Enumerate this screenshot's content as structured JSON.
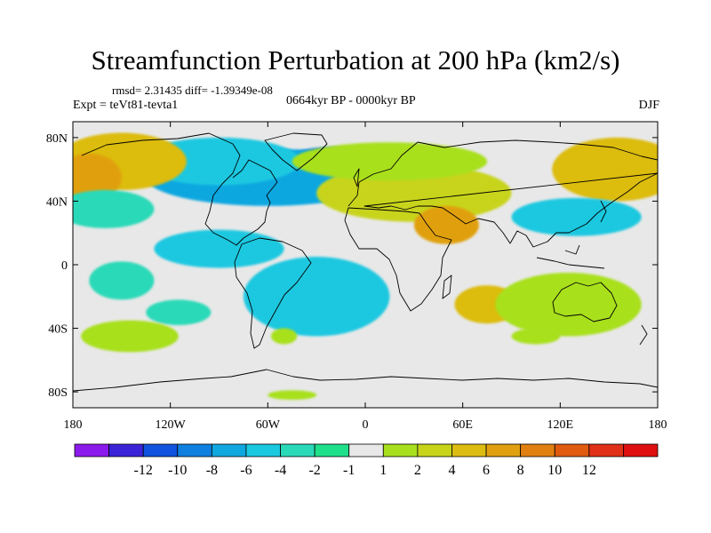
{
  "header": {
    "title": "Streamfunction Perturbation at 200 hPa (km2/s)",
    "stats": "rmsd= 2.31435 diff= -1.39349e-08",
    "experiment": "Expt = teVt81-tevta1",
    "period": "0664kyr BP - 0000kyr BP",
    "season": "DJF"
  },
  "axes": {
    "lat_ticks": [
      {
        "value": 80,
        "label": "80N"
      },
      {
        "value": 40,
        "label": "40N"
      },
      {
        "value": 0,
        "label": "0"
      },
      {
        "value": -40,
        "label": "40S"
      },
      {
        "value": -80,
        "label": "80S"
      }
    ],
    "lon_ticks": [
      {
        "value": -180,
        "label": "180"
      },
      {
        "value": -120,
        "label": "120W"
      },
      {
        "value": -60,
        "label": "60W"
      },
      {
        "value": 0,
        "label": "0"
      },
      {
        "value": 60,
        "label": "60E"
      },
      {
        "value": 120,
        "label": "120E"
      },
      {
        "value": 180,
        "label": "180"
      }
    ],
    "lat_range": [
      -90,
      90
    ],
    "lon_range": [
      -180,
      180
    ]
  },
  "colorbar": {
    "colors": [
      "#8c1aec",
      "#3b24d8",
      "#1152de",
      "#0f7fe0",
      "#0fa7e0",
      "#1ac8e0",
      "#2ad9b8",
      "#1ee08a",
      "#e8e8e8",
      "#a8e01e",
      "#c8d41a",
      "#dcbc10",
      "#e0a010",
      "#e08010",
      "#e05a10",
      "#e03018",
      "#e01010"
    ],
    "labels": [
      "-12",
      "-10",
      "-8",
      "-6",
      "-4",
      "-2",
      "-1",
      "1",
      "2",
      "4",
      "6",
      "8",
      "10",
      "12"
    ]
  },
  "chart_data": {
    "type": "heatmap",
    "title": "Streamfunction Perturbation at 200 hPa (km2/s)",
    "levels": [
      -12,
      -10,
      -8,
      -6,
      -4,
      -2,
      -1,
      1,
      2,
      4,
      6,
      8,
      10,
      12
    ],
    "features": [
      {
        "lon": -20,
        "lat": 58,
        "value": -8,
        "rx": 40,
        "ry": 16
      },
      {
        "lon": -60,
        "lat": 55,
        "value": -6,
        "rx": 75,
        "ry": 18
      },
      {
        "lon": -90,
        "lat": 65,
        "value": -4,
        "rx": 50,
        "ry": 15
      },
      {
        "lon": -150,
        "lat": 65,
        "value": 6,
        "rx": 40,
        "ry": 18
      },
      {
        "lon": -170,
        "lat": 55,
        "value": 8,
        "rx": 20,
        "ry": 15
      },
      {
        "lon": 155,
        "lat": 60,
        "value": 6,
        "rx": 40,
        "ry": 20
      },
      {
        "lon": 30,
        "lat": 45,
        "value": 4,
        "rx": 60,
        "ry": 18
      },
      {
        "lon": 50,
        "lat": 25,
        "value": 8,
        "rx": 20,
        "ry": 12
      },
      {
        "lon": 15,
        "lat": 65,
        "value": 2,
        "rx": 60,
        "ry": 12
      },
      {
        "lon": -160,
        "lat": 35,
        "value": -2,
        "rx": 30,
        "ry": 12
      },
      {
        "lon": 130,
        "lat": 30,
        "value": -4,
        "rx": 40,
        "ry": 12
      },
      {
        "lon": -30,
        "lat": -20,
        "value": -4,
        "rx": 45,
        "ry": 25
      },
      {
        "lon": -90,
        "lat": 10,
        "value": -4,
        "rx": 40,
        "ry": 12
      },
      {
        "lon": -150,
        "lat": -10,
        "value": -2,
        "rx": 20,
        "ry": 12
      },
      {
        "lon": -115,
        "lat": -30,
        "value": -2,
        "rx": 20,
        "ry": 8
      },
      {
        "lon": 75,
        "lat": -25,
        "value": 6,
        "rx": 20,
        "ry": 12
      },
      {
        "lon": 125,
        "lat": -25,
        "value": 2,
        "rx": 45,
        "ry": 20
      },
      {
        "lon": -145,
        "lat": -45,
        "value": 2,
        "rx": 30,
        "ry": 10
      },
      {
        "lon": -50,
        "lat": -45,
        "value": 2,
        "rx": 8,
        "ry": 5
      },
      {
        "lon": 105,
        "lat": -45,
        "value": 2,
        "rx": 15,
        "ry": 5
      },
      {
        "lon": -45,
        "lat": -82,
        "value": 2,
        "rx": 15,
        "ry": 3
      }
    ]
  }
}
